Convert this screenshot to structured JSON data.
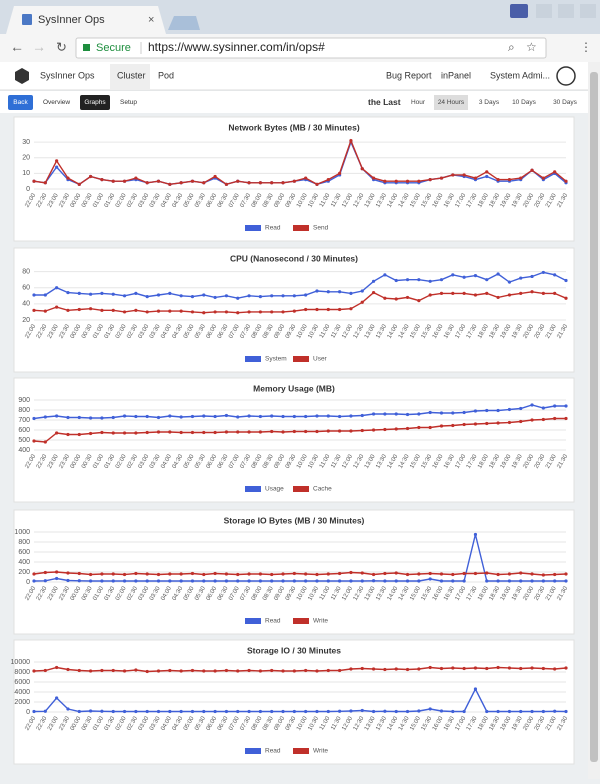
{
  "browser": {
    "tab_title": "SysInner Ops",
    "secure": "Secure",
    "url": "https://www.sysinner.com/in/ops#"
  },
  "nav": {
    "brand": "SysInner Ops",
    "items": [
      "Cluster",
      "Pod"
    ],
    "right": [
      "Bug Report",
      "inPanel",
      "System Admi..."
    ]
  },
  "subnav": {
    "tabs": [
      "Back",
      "Overview",
      "Graphs",
      "Setup"
    ],
    "range_label": "the Last",
    "ranges": [
      "Hour",
      "24 Hours",
      "3 Days",
      "10 Days",
      "30 Days"
    ]
  },
  "chart_data": [
    {
      "type": "line",
      "title": "Network Bytes (MB / 30 Minutes)",
      "categories": [
        "22:00",
        "22:30",
        "23:00",
        "23:30",
        "00:00",
        "00:30",
        "01:00",
        "01:30",
        "02:00",
        "02:30",
        "03:00",
        "03:30",
        "04:00",
        "04:30",
        "05:00",
        "05:30",
        "06:00",
        "06:30",
        "07:00",
        "07:30",
        "08:00",
        "08:30",
        "09:00",
        "09:30",
        "10:00",
        "10:30",
        "11:00",
        "11:30",
        "12:00",
        "12:30",
        "13:00",
        "13:30",
        "14:00",
        "14:30",
        "15:00",
        "15:30",
        "16:00",
        "16:30",
        "17:00",
        "17:30",
        "18:00",
        "18:30",
        "19:00",
        "19:30",
        "20:00",
        "20:30",
        "21:00",
        "21:30"
      ],
      "series": [
        {
          "name": "Read",
          "color": "#4060d8",
          "values": [
            5,
            4,
            14,
            6,
            3,
            8,
            6,
            5,
            5,
            6,
            4,
            5,
            3,
            4,
            5,
            4,
            7,
            3,
            5,
            4,
            4,
            4,
            4,
            5,
            6,
            3,
            5,
            9,
            30,
            13,
            6,
            4,
            4,
            4,
            4,
            6,
            7,
            9,
            8,
            6,
            8,
            5,
            5,
            6,
            12,
            6,
            10,
            4
          ]
        },
        {
          "name": "Send",
          "color": "#c0302a",
          "values": [
            5,
            4,
            18,
            7,
            3,
            8,
            6,
            5,
            5,
            7,
            4,
            5,
            3,
            4,
            5,
            4,
            8,
            3,
            5,
            4,
            4,
            4,
            4,
            5,
            7,
            3,
            6,
            10,
            31,
            13,
            7,
            5,
            5,
            5,
            5,
            6,
            7,
            9,
            9,
            7,
            11,
            6,
            6,
            7,
            12,
            7,
            11,
            5
          ]
        }
      ],
      "ylim": [
        0,
        32
      ],
      "yticks": [
        0,
        10,
        20,
        30
      ]
    },
    {
      "type": "line",
      "title": "CPU (Nanosecond / 30 Minutes)",
      "categories": [
        "22:00",
        "22:30",
        "23:00",
        "23:30",
        "00:00",
        "00:30",
        "01:00",
        "01:30",
        "02:00",
        "02:30",
        "03:00",
        "03:30",
        "04:00",
        "04:30",
        "05:00",
        "05:30",
        "06:00",
        "06:30",
        "07:00",
        "07:30",
        "08:00",
        "08:30",
        "09:00",
        "09:30",
        "10:00",
        "10:30",
        "11:00",
        "11:30",
        "12:00",
        "12:30",
        "13:00",
        "13:30",
        "14:00",
        "14:30",
        "15:00",
        "15:30",
        "16:00",
        "16:30",
        "17:00",
        "17:30",
        "18:00",
        "18:30",
        "19:00",
        "19:30",
        "20:00",
        "20:30",
        "21:00",
        "21:30"
      ],
      "series": [
        {
          "name": "System",
          "color": "#4060d8",
          "values": [
            51,
            51,
            60,
            54,
            53,
            52,
            53,
            52,
            50,
            53,
            49,
            51,
            53,
            50,
            49,
            51,
            48,
            50,
            47,
            50,
            49,
            50,
            50,
            50,
            51,
            56,
            55,
            55,
            53,
            56,
            68,
            76,
            69,
            70,
            70,
            68,
            70,
            76,
            73,
            75,
            70,
            77,
            67,
            72,
            74,
            79,
            76,
            69
          ]
        },
        {
          "name": "User",
          "color": "#c0302a",
          "values": [
            32,
            31,
            36,
            32,
            33,
            34,
            32,
            32,
            30,
            32,
            30,
            31,
            31,
            31,
            30,
            29,
            30,
            30,
            29,
            30,
            30,
            30,
            30,
            31,
            33,
            33,
            33,
            33,
            34,
            42,
            54,
            47,
            46,
            48,
            44,
            51,
            53,
            53,
            53,
            51,
            53,
            48,
            51,
            53,
            55,
            53,
            53,
            47
          ]
        }
      ],
      "ylim": [
        20,
        82
      ],
      "yticks": [
        20,
        40,
        60,
        80
      ]
    },
    {
      "type": "line",
      "title": "Memory Usage (MB)",
      "categories": [
        "22:00",
        "22:30",
        "23:00",
        "23:30",
        "00:00",
        "00:30",
        "01:00",
        "01:30",
        "02:00",
        "02:30",
        "03:00",
        "03:30",
        "04:00",
        "04:30",
        "05:00",
        "05:30",
        "06:00",
        "06:30",
        "07:00",
        "07:30",
        "08:00",
        "08:30",
        "09:00",
        "09:30",
        "10:00",
        "10:30",
        "11:00",
        "11:30",
        "12:00",
        "12:30",
        "13:00",
        "13:30",
        "14:00",
        "14:30",
        "15:00",
        "15:30",
        "16:00",
        "16:30",
        "17:00",
        "17:30",
        "18:00",
        "18:30",
        "19:00",
        "19:30",
        "20:00",
        "20:30",
        "21:00",
        "21:30"
      ],
      "series": [
        {
          "name": "Usage",
          "color": "#4060d8",
          "values": [
            715,
            730,
            740,
            725,
            725,
            720,
            720,
            725,
            740,
            735,
            735,
            725,
            740,
            730,
            735,
            740,
            735,
            745,
            730,
            740,
            735,
            740,
            735,
            735,
            735,
            740,
            740,
            735,
            740,
            745,
            760,
            760,
            760,
            755,
            760,
            775,
            770,
            770,
            775,
            790,
            795,
            795,
            805,
            815,
            850,
            820,
            840,
            840
          ]
        },
        {
          "name": "Cache",
          "color": "#c0302a",
          "values": [
            490,
            480,
            570,
            555,
            555,
            565,
            575,
            570,
            570,
            570,
            575,
            580,
            580,
            575,
            575,
            575,
            575,
            580,
            580,
            580,
            580,
            585,
            580,
            585,
            585,
            585,
            590,
            590,
            590,
            595,
            600,
            605,
            610,
            615,
            625,
            625,
            640,
            645,
            655,
            660,
            665,
            670,
            675,
            685,
            700,
            705,
            715,
            715
          ]
        }
      ],
      "ylim": [
        400,
        900
      ],
      "yticks": [
        400,
        500,
        600,
        700,
        800,
        900
      ]
    },
    {
      "type": "line",
      "title": "Storage IO Bytes (MB / 30 Minutes)",
      "categories": [
        "22:00",
        "22:30",
        "23:00",
        "23:30",
        "00:00",
        "00:30",
        "01:00",
        "01:30",
        "02:00",
        "02:30",
        "03:00",
        "03:30",
        "04:00",
        "04:30",
        "05:00",
        "05:30",
        "06:00",
        "06:30",
        "07:00",
        "07:30",
        "08:00",
        "08:30",
        "09:00",
        "09:30",
        "10:00",
        "10:30",
        "11:00",
        "11:30",
        "12:00",
        "12:30",
        "13:00",
        "13:30",
        "14:00",
        "14:30",
        "15:00",
        "15:30",
        "16:00",
        "16:30",
        "17:00",
        "17:30",
        "18:00",
        "18:30",
        "19:00",
        "19:30",
        "20:00",
        "20:30",
        "21:00",
        "21:30"
      ],
      "series": [
        {
          "name": "Read",
          "color": "#4060d8",
          "values": [
            20,
            25,
            70,
            30,
            25,
            20,
            20,
            20,
            20,
            20,
            20,
            20,
            20,
            20,
            20,
            20,
            20,
            20,
            20,
            20,
            20,
            20,
            20,
            20,
            20,
            20,
            20,
            20,
            20,
            20,
            25,
            20,
            20,
            20,
            20,
            60,
            20,
            20,
            20,
            950,
            20,
            20,
            20,
            20,
            20,
            20,
            20,
            20
          ]
        },
        {
          "name": "Write",
          "color": "#c0302a",
          "values": [
            160,
            190,
            200,
            180,
            170,
            150,
            160,
            160,
            150,
            170,
            160,
            150,
            160,
            160,
            170,
            150,
            170,
            160,
            150,
            160,
            160,
            150,
            160,
            170,
            160,
            150,
            160,
            170,
            190,
            180,
            150,
            170,
            180,
            150,
            160,
            170,
            160,
            150,
            170,
            170,
            180,
            150,
            160,
            180,
            160,
            140,
            150,
            160
          ]
        }
      ],
      "ylim": [
        0,
        1000
      ],
      "yticks": [
        0,
        200,
        400,
        600,
        800,
        1000
      ]
    },
    {
      "type": "line",
      "title": "Storage IO / 30 Minutes",
      "categories": [
        "22:00",
        "22:30",
        "23:00",
        "23:30",
        "00:00",
        "00:30",
        "01:00",
        "01:30",
        "02:00",
        "02:30",
        "03:00",
        "03:30",
        "04:00",
        "04:30",
        "05:00",
        "05:30",
        "06:00",
        "06:30",
        "07:00",
        "07:30",
        "08:00",
        "08:30",
        "09:00",
        "09:30",
        "10:00",
        "10:30",
        "11:00",
        "11:30",
        "12:00",
        "12:30",
        "13:00",
        "13:30",
        "14:00",
        "14:30",
        "15:00",
        "15:30",
        "16:00",
        "16:30",
        "17:00",
        "17:30",
        "18:00",
        "18:30",
        "19:00",
        "19:30",
        "20:00",
        "20:30",
        "21:00",
        "21:30"
      ],
      "series": [
        {
          "name": "Read",
          "color": "#4060d8",
          "values": [
            100,
            150,
            2800,
            600,
            100,
            200,
            150,
            100,
            100,
            100,
            100,
            100,
            100,
            100,
            100,
            100,
            100,
            100,
            100,
            100,
            100,
            100,
            100,
            100,
            100,
            100,
            100,
            150,
            200,
            300,
            100,
            150,
            100,
            100,
            200,
            600,
            200,
            100,
            100,
            4600,
            100,
            100,
            100,
            100,
            100,
            100,
            150,
            100
          ]
        },
        {
          "name": "Write",
          "color": "#c0302a",
          "values": [
            8200,
            8300,
            8900,
            8500,
            8300,
            8200,
            8300,
            8300,
            8200,
            8400,
            8100,
            8200,
            8300,
            8200,
            8300,
            8200,
            8200,
            8300,
            8200,
            8300,
            8200,
            8300,
            8200,
            8200,
            8300,
            8200,
            8300,
            8300,
            8600,
            8700,
            8600,
            8500,
            8600,
            8500,
            8600,
            8900,
            8700,
            8800,
            8700,
            8800,
            8700,
            8900,
            8800,
            8700,
            8800,
            8700,
            8600,
            8800
          ]
        }
      ],
      "ylim": [
        0,
        10000
      ],
      "yticks": [
        0,
        2000,
        4000,
        6000,
        8000,
        10000
      ]
    }
  ]
}
